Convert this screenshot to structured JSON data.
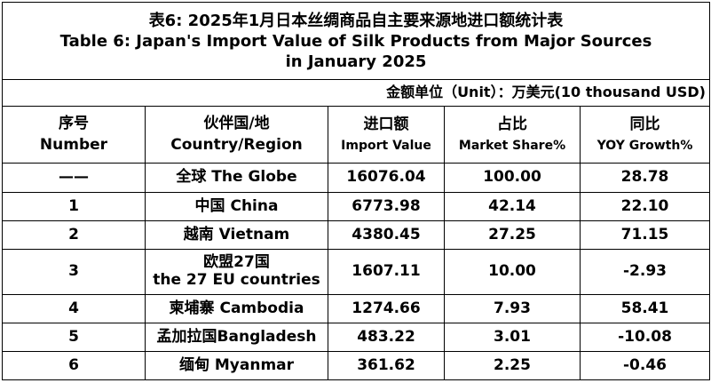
{
  "title": {
    "zh": "表6: 2025年1月日本丝绸商品自主要来源地进口额统计表",
    "en1": "Table 6: Japan's Import Value of Silk Products from Major Sources",
    "en2": "in January 2025"
  },
  "unit": "金额单位（Unit）：万美元(10 thousand USD)",
  "columns": [
    {
      "zh": "序号",
      "en": "Number"
    },
    {
      "zh": "伙伴国/地",
      "en": "Country/Region"
    },
    {
      "zh": "进口额",
      "en": "Import Value"
    },
    {
      "zh": "占比",
      "en": "Market Share%"
    },
    {
      "zh": "同比",
      "en": "YOY Growth%"
    }
  ],
  "rows": [
    {
      "number": "——",
      "country": "全球  The Globe",
      "value": "16076.04",
      "share": "100.00",
      "yoy": "28.78"
    },
    {
      "number": "1",
      "country": "中国 China",
      "value": "6773.98",
      "share": "42.14",
      "yoy": "22.10"
    },
    {
      "number": "2",
      "country": "越南 Vietnam",
      "value": "4380.45",
      "share": "27.25",
      "yoy": "71.15"
    },
    {
      "number": "3",
      "country": "欧盟27国",
      "country2": "the 27 EU countries",
      "value": "1607.11",
      "share": "10.00",
      "yoy": "-2.93"
    },
    {
      "number": "4",
      "country": "柬埔寨 Cambodia",
      "value": "1274.66",
      "share": "7.93",
      "yoy": "58.41"
    },
    {
      "number": "5",
      "country": "孟加拉国Bangladesh",
      "value": "483.22",
      "share": "3.01",
      "yoy": "-10.08"
    },
    {
      "number": "6",
      "country": "缅甸 Myanmar",
      "value": "361.62",
      "share": "2.25",
      "yoy": "-0.46"
    }
  ]
}
